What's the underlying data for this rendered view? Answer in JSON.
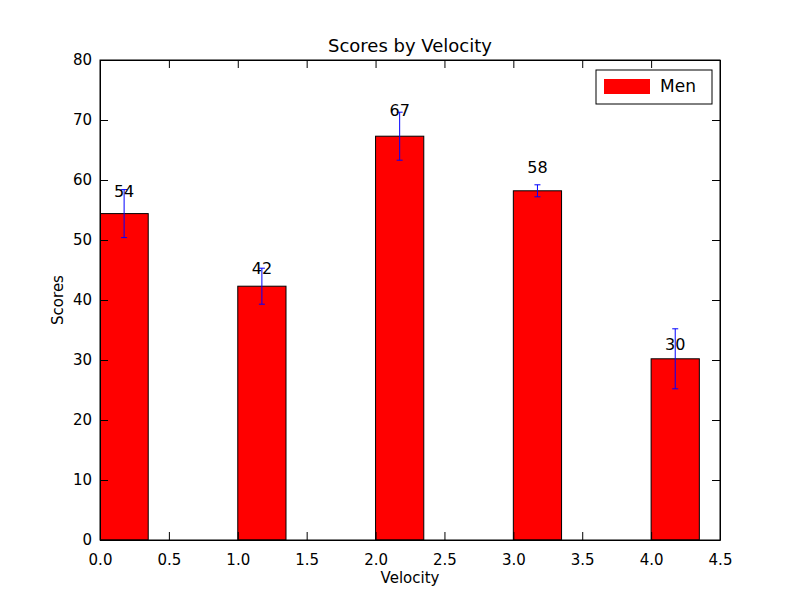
{
  "chart_data": {
    "type": "bar",
    "title": "Scores by Velocity",
    "x_label": "Velocity",
    "y_label": "Scores",
    "x": [
      0,
      1,
      2,
      3,
      4
    ],
    "series": [
      {
        "name": "Men",
        "color": "#ff0000",
        "values": [
          54.4,
          42.3,
          67.3,
          58.2,
          30.2
        ],
        "value_labels": [
          "54",
          "42",
          "67",
          "58",
          "30"
        ],
        "errors": [
          4,
          3,
          4,
          1,
          5
        ]
      }
    ],
    "xlim": [
      0,
      4.5
    ],
    "xticks": [
      {
        "value": 0,
        "label": "0.0"
      },
      {
        "value": 0.5,
        "label": "0.5"
      },
      {
        "value": 1,
        "label": "1.0"
      },
      {
        "value": 1.5,
        "label": "1.5"
      },
      {
        "value": 2,
        "label": "2.0"
      },
      {
        "value": 2.5,
        "label": "2.5"
      },
      {
        "value": 3,
        "label": "3.0"
      },
      {
        "value": 3.5,
        "label": "3.5"
      },
      {
        "value": 4,
        "label": "4.0"
      },
      {
        "value": 4.5,
        "label": "4.5"
      }
    ],
    "ylim": [
      0,
      80
    ],
    "yticks": [
      0,
      10,
      20,
      30,
      40,
      50,
      60,
      70,
      80
    ],
    "legend": "upper right",
    "data_labels": true,
    "grid": false
  }
}
